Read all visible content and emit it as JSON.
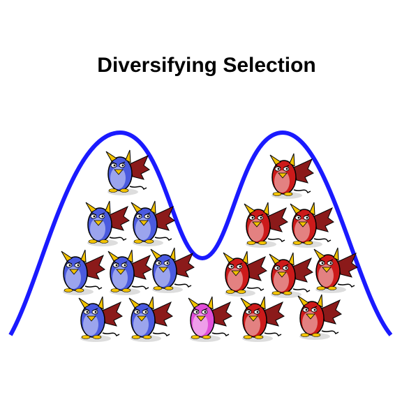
{
  "title": "Diversifying Selection"
}
